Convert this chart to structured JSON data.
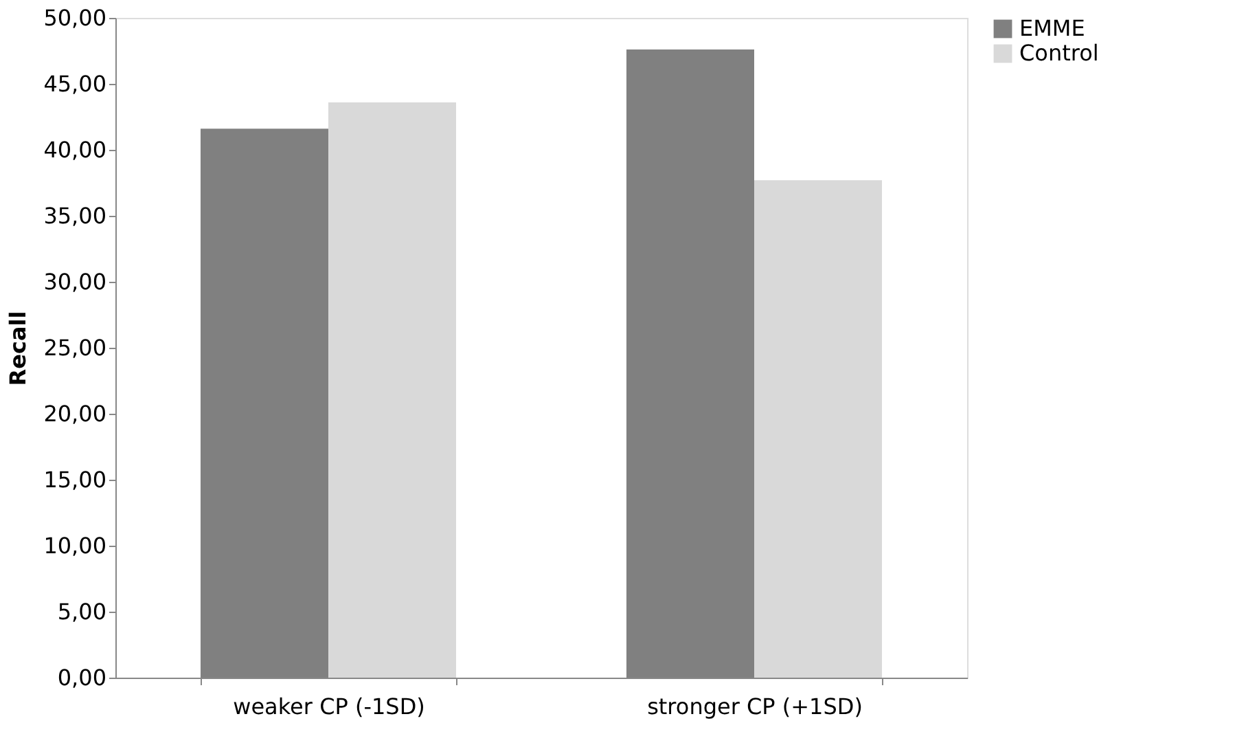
{
  "chart_data": {
    "type": "bar",
    "ylabel": "Recall",
    "categories": [
      "weaker CP (-1SD)",
      "stronger CP (+1SD)"
    ],
    "series": [
      {
        "name": "EMME",
        "color": "#808080",
        "values": [
          41.6,
          47.6
        ]
      },
      {
        "name": "Control",
        "color": "#d9d9d9",
        "values": [
          43.6,
          37.7
        ]
      }
    ],
    "ylim": [
      0,
      50
    ],
    "yticks": [
      {
        "value": 0,
        "label": "0,00"
      },
      {
        "value": 5,
        "label": "5,00"
      },
      {
        "value": 10,
        "label": "10,00"
      },
      {
        "value": 15,
        "label": "15,00"
      },
      {
        "value": 20,
        "label": "20,00"
      },
      {
        "value": 25,
        "label": "25,00"
      },
      {
        "value": 30,
        "label": "30,00"
      },
      {
        "value": 35,
        "label": "35,00"
      },
      {
        "value": 40,
        "label": "40,00"
      },
      {
        "value": 45,
        "label": "45,00"
      },
      {
        "value": 50,
        "label": "50,00"
      }
    ],
    "grid": false,
    "legend": "right"
  }
}
